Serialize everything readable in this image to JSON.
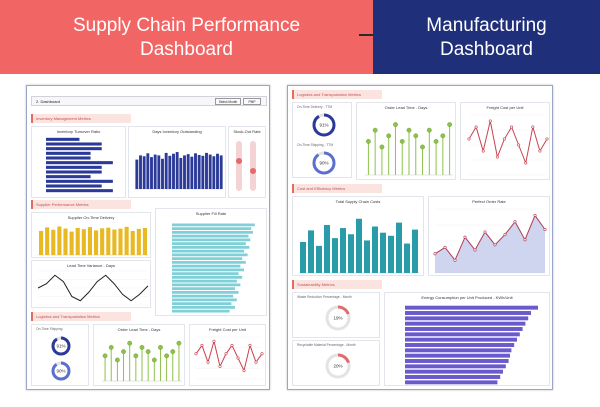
{
  "banner": {
    "left_line1": "Supply Chain Performance",
    "left_line2": "Dashboard",
    "right_line1": "Manufacturing",
    "right_line2": "Dashboard"
  },
  "left_dashboard": {
    "tab_label": "2. Dashboard",
    "buttons": [
      "Select Month",
      "PMP"
    ],
    "sections": [
      "Inventory Management Metrics",
      "Supplier Performance Metrics",
      "Logistics and Transportation Metrics"
    ],
    "cards": {
      "inventory_turnover": "Inventory Turnover Ratio",
      "days_inventory": "Days Inventory Outstanding",
      "stock_out": "Stock-Out Rate",
      "on_time_delivery": "Supplier On-Time Delivery",
      "fill_rate": "Supplier Fill Rate",
      "lead_time_variance": "Lead Time Variance - Days",
      "on_time_shipping": "On-Time Shipping",
      "order_lead_time": "Order Lead Time - Days",
      "freight_cost": "Freight Cost per Unit"
    },
    "kpi_values": [
      "91%",
      "90%"
    ]
  },
  "right_dashboard": {
    "sections": [
      "Logistics and Transportation Metrics",
      "Cost and Efficiency Metrics",
      "Sustainability Metrics"
    ],
    "cards": {
      "on_time_delivery": "On-Time Delivery - TTM",
      "on_time_shipping": "On-Time Shipping - TTM",
      "order_lead_time": "Order Lead Time - Days",
      "freight_cost": "Freight Cost per Unit",
      "total_cost": "Total Supply Chain Costs",
      "perfect_order": "Perfect Order Rate",
      "waste_reduction": "Waste Reduction Percentage - Month",
      "recyclable": "Recyclable Material Percentage - Month",
      "energy": "Energy Consumption per Unit Produced - KWh/Unit"
    },
    "kpi_values": [
      "91%",
      "90%",
      "19%",
      "20%"
    ]
  },
  "colors": {
    "banner_left": "#f26565",
    "banner_right": "#1f2f7a",
    "navy_bar": "#2b3a99",
    "gold_bar": "#e8b923",
    "teal_bar": "#2a9ba8",
    "light_teal": "#7fd0d8",
    "lollipop": "#8dc24a",
    "line_red": "#c9424f",
    "energy_bar": "#6a5acd"
  },
  "chart_data": [
    {
      "type": "bar",
      "categories": [
        "Jan",
        "Feb",
        "Mar",
        "Apr",
        "May",
        "Jun",
        "Jul",
        "Aug",
        "Sep",
        "Oct",
        "Nov",
        "Dec"
      ],
      "values": [
        3,
        5,
        5,
        4,
        4,
        6,
        5,
        5,
        4,
        6,
        5,
        6
      ]
    },
    {
      "type": "bar",
      "categories": [
        "Jan",
        "Feb",
        "Mar",
        "Apr",
        "May",
        "Jun",
        "Jul",
        "Aug",
        "Sep",
        "Oct",
        "Nov",
        "Dec",
        "Jan",
        "Feb",
        "Mar",
        "Apr",
        "May",
        "Jun",
        "Jul",
        "Aug",
        "Sep",
        "Oct",
        "Nov",
        "Dec"
      ],
      "values": [
        70,
        80,
        78,
        85,
        76,
        82,
        80,
        72,
        86,
        79,
        84,
        88,
        74,
        80,
        83,
        77,
        85,
        81,
        79,
        86,
        82,
        78,
        84,
        80
      ]
    },
    {
      "type": "bar",
      "categories": [
        "Jan",
        "Feb",
        "Mar",
        "Apr",
        "May",
        "Jun",
        "Jul",
        "Aug",
        "Sep",
        "Oct",
        "Nov",
        "Dec",
        "Jan",
        "Feb",
        "Mar",
        "Apr",
        "May",
        "Jun"
      ],
      "values": [
        80,
        92,
        84,
        95,
        88,
        78,
        90,
        86,
        93,
        82,
        89,
        91,
        85,
        88,
        94,
        80,
        87,
        90
      ]
    },
    {
      "type": "bar",
      "categories": [
        "Jan",
        "Feb",
        "Mar",
        "Apr",
        "May",
        "Jun",
        "Jul",
        "Aug",
        "Sep",
        "Oct",
        "Nov",
        "Dec",
        "Jan",
        "Feb",
        "Mar",
        "Apr",
        "May",
        "Jun",
        "Jul",
        "Aug",
        "Sep",
        "Oct",
        "Nov",
        "Dec"
      ],
      "values": [
        92,
        88,
        90,
        85,
        87,
        82,
        86,
        80,
        84,
        78,
        82,
        76,
        80,
        74,
        78,
        72,
        76,
        70,
        74,
        68,
        72,
        66,
        70,
        64
      ]
    },
    {
      "type": "line",
      "values": [
        0,
        2,
        6,
        3,
        -4,
        -6,
        -2,
        3,
        6,
        2,
        -3,
        -6,
        -3,
        1
      ]
    },
    {
      "type": "bar",
      "values": [
        6,
        8,
        5,
        7,
        9,
        6,
        8,
        7,
        5,
        8,
        6,
        7,
        9
      ]
    },
    {
      "type": "line",
      "values": [
        5,
        6,
        4,
        6.5,
        3.5,
        5,
        6,
        4.5,
        3,
        6,
        4,
        5
      ]
    },
    {
      "type": "bar",
      "values": [
        40,
        55,
        35,
        62,
        45,
        58,
        50,
        70,
        42,
        60,
        52,
        48,
        65,
        38,
        56
      ]
    },
    {
      "type": "area",
      "values": [
        55,
        60,
        50,
        68,
        58,
        72,
        62,
        70,
        80,
        66,
        85,
        74
      ]
    },
    {
      "type": "bar",
      "values": [
        95,
        90,
        88,
        86,
        84,
        82,
        80,
        78,
        76,
        75,
        74,
        72,
        70,
        68,
        66
      ]
    }
  ]
}
